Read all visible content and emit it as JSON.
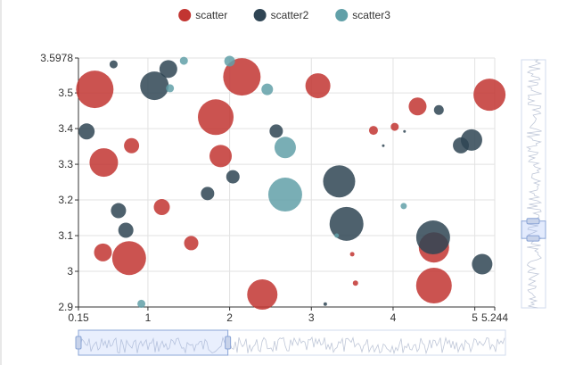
{
  "chart_data": {
    "type": "scatter",
    "legend_position": "top-center",
    "legend": [
      {
        "name": "scatter",
        "color": "#c23531"
      },
      {
        "name": "scatter2",
        "color": "#2f4554"
      },
      {
        "name": "scatter3",
        "color": "#61a0a8"
      }
    ],
    "x_axis": {
      "range": [
        0.15,
        5.244
      ],
      "tick_labels": [
        {
          "v": 0.15,
          "t": "0.15"
        },
        {
          "v": 1,
          "t": "1"
        },
        {
          "v": 2,
          "t": "2"
        },
        {
          "v": 3,
          "t": "3"
        },
        {
          "v": 4,
          "t": "4"
        },
        {
          "v": 5,
          "t": "5"
        },
        {
          "v": 5.244,
          "t": "5.244"
        }
      ]
    },
    "y_axis": {
      "range": [
        2.9,
        3.5978
      ],
      "tick_labels": [
        {
          "v": 2.9,
          "t": "2.9"
        },
        {
          "v": 3.0,
          "t": "3"
        },
        {
          "v": 3.1,
          "t": "3.1"
        },
        {
          "v": 3.2,
          "t": "3.2"
        },
        {
          "v": 3.3,
          "t": "3.3"
        },
        {
          "v": 3.4,
          "t": "3.4"
        },
        {
          "v": 3.5,
          "t": "3.5"
        },
        {
          "v": 3.5978,
          "t": "3.5978"
        }
      ]
    },
    "grid": true,
    "data_zoom": {
      "x_slider": {
        "position": "bottom",
        "start_fraction": 0.0,
        "end_fraction": 0.35
      },
      "y_slider": {
        "position": "right",
        "start_fraction": 0.28,
        "end_fraction": 0.35
      }
    },
    "series": [
      {
        "name": "scatter",
        "color": "#c23531",
        "points": [
          {
            "x": 0.35,
            "y": 3.51,
            "size": 42
          },
          {
            "x": 0.46,
            "y": 3.305,
            "size": 32
          },
          {
            "x": 0.45,
            "y": 3.053,
            "size": 20
          },
          {
            "x": 0.77,
            "y": 3.037,
            "size": 38
          },
          {
            "x": 0.8,
            "y": 3.352,
            "size": 17
          },
          {
            "x": 1.17,
            "y": 3.18,
            "size": 18
          },
          {
            "x": 1.53,
            "y": 3.079,
            "size": 16
          },
          {
            "x": 1.83,
            "y": 3.432,
            "size": 40
          },
          {
            "x": 1.89,
            "y": 3.323,
            "size": 25
          },
          {
            "x": 2.15,
            "y": 3.545,
            "size": 42
          },
          {
            "x": 2.4,
            "y": 2.935,
            "size": 34
          },
          {
            "x": 3.08,
            "y": 3.52,
            "size": 28
          },
          {
            "x": 3.5,
            "y": 3.048,
            "size": 5
          },
          {
            "x": 3.54,
            "y": 2.967,
            "size": 6
          },
          {
            "x": 3.76,
            "y": 3.395,
            "size": 10
          },
          {
            "x": 4.02,
            "y": 3.405,
            "size": 9
          },
          {
            "x": 4.3,
            "y": 3.462,
            "size": 20
          },
          {
            "x": 4.5,
            "y": 3.067,
            "size": 34
          },
          {
            "x": 4.5,
            "y": 2.96,
            "size": 40
          },
          {
            "x": 5.18,
            "y": 3.495,
            "size": 36
          }
        ]
      },
      {
        "name": "scatter2",
        "color": "#2f4554",
        "points": [
          {
            "x": 0.25,
            "y": 3.392,
            "size": 18
          },
          {
            "x": 0.58,
            "y": 3.58,
            "size": 9
          },
          {
            "x": 0.64,
            "y": 3.17,
            "size": 17
          },
          {
            "x": 0.73,
            "y": 3.115,
            "size": 17
          },
          {
            "x": 1.08,
            "y": 3.52,
            "size": 32
          },
          {
            "x": 1.25,
            "y": 3.567,
            "size": 20
          },
          {
            "x": 1.73,
            "y": 3.218,
            "size": 15
          },
          {
            "x": 2.04,
            "y": 3.265,
            "size": 15
          },
          {
            "x": 2.57,
            "y": 3.393,
            "size": 15
          },
          {
            "x": 3.17,
            "y": 2.908,
            "size": 4
          },
          {
            "x": 3.34,
            "y": 3.252,
            "size": 36
          },
          {
            "x": 3.43,
            "y": 3.133,
            "size": 38
          },
          {
            "x": 3.88,
            "y": 3.352,
            "size": 3
          },
          {
            "x": 4.14,
            "y": 3.392,
            "size": 3
          },
          {
            "x": 4.49,
            "y": 3.095,
            "size": 38
          },
          {
            "x": 4.56,
            "y": 3.452,
            "size": 11
          },
          {
            "x": 4.83,
            "y": 3.353,
            "size": 18
          },
          {
            "x": 4.96,
            "y": 3.368,
            "size": 24
          },
          {
            "x": 5.09,
            "y": 3.02,
            "size": 23
          }
        ]
      },
      {
        "name": "scatter3",
        "color": "#61a0a8",
        "points": [
          {
            "x": 0.92,
            "y": 2.909,
            "size": 9
          },
          {
            "x": 1.27,
            "y": 3.513,
            "size": 9
          },
          {
            "x": 1.44,
            "y": 3.59,
            "size": 9
          },
          {
            "x": 2.0,
            "y": 3.589,
            "size": 12
          },
          {
            "x": 2.46,
            "y": 3.51,
            "size": 13
          },
          {
            "x": 2.68,
            "y": 3.347,
            "size": 24
          },
          {
            "x": 2.68,
            "y": 3.215,
            "size": 38
          },
          {
            "x": 3.31,
            "y": 3.1,
            "size": 5
          },
          {
            "x": 4.13,
            "y": 3.183,
            "size": 7
          }
        ]
      }
    ]
  }
}
